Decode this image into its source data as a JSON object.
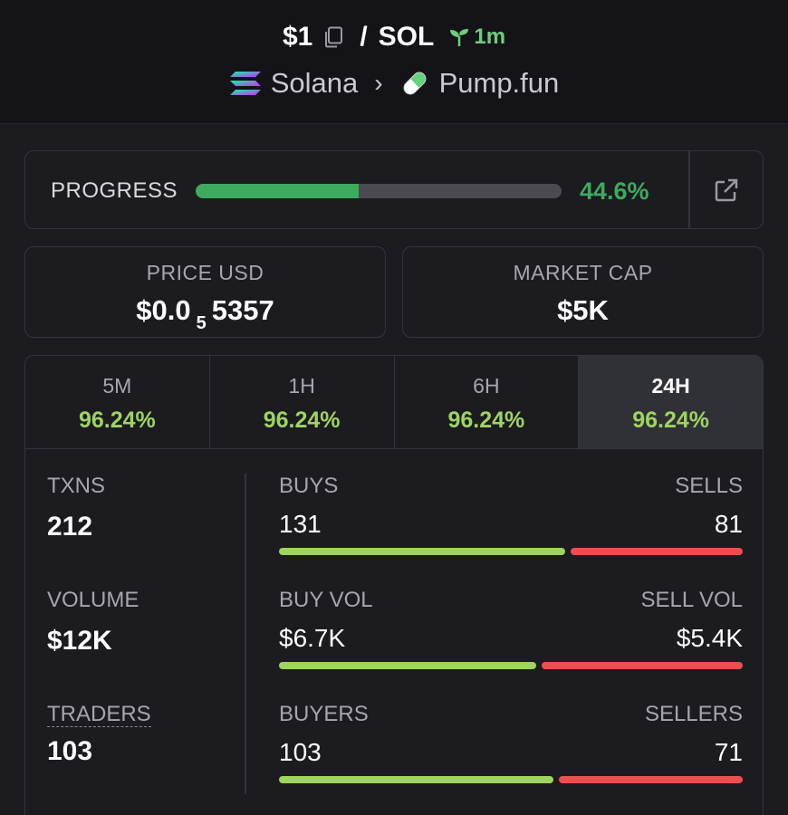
{
  "header": {
    "token_symbol": "$1",
    "separator": "/",
    "quote_symbol": "SOL",
    "age": "1m",
    "chain": "Solana",
    "dex": "Pump.fun"
  },
  "progress": {
    "label": "PROGRESS",
    "value_text": "44.6%",
    "fraction": 0.446
  },
  "price": {
    "label": "PRICE USD",
    "prefix": "$0.0",
    "zero_count": "5",
    "digits": "5357"
  },
  "market_cap": {
    "label": "MARKET CAP",
    "value": "$5K"
  },
  "tabs": [
    {
      "label": "5M",
      "value": "96.24%",
      "active": false
    },
    {
      "label": "1H",
      "value": "96.24%",
      "active": false
    },
    {
      "label": "6H",
      "value": "96.24%",
      "active": false
    },
    {
      "label": "24H",
      "value": "96.24%",
      "active": true
    }
  ],
  "metrics": {
    "txns_label": "TXNS",
    "txns_value": "212",
    "volume_label": "VOLUME",
    "volume_value": "$12K",
    "traders_label": "TRADERS",
    "traders_value": "103"
  },
  "breakdown": {
    "buys_label": "BUYS",
    "sells_label": "SELLS",
    "buys_value": "131",
    "sells_value": "81",
    "buys_fraction": 0.618,
    "buy_vol_label": "BUY VOL",
    "sell_vol_label": "SELL VOL",
    "buy_vol_value": "$6.7K",
    "sell_vol_value": "$5.4K",
    "buy_vol_fraction": 0.554,
    "buyers_label": "BUYERS",
    "sellers_label": "SELLERS",
    "buyers_value": "103",
    "sellers_value": "71",
    "buyers_fraction": 0.592
  },
  "colors": {
    "accent_green": "#3daa5e",
    "positive": "#9ed45f",
    "negative": "#ef4e4e"
  }
}
